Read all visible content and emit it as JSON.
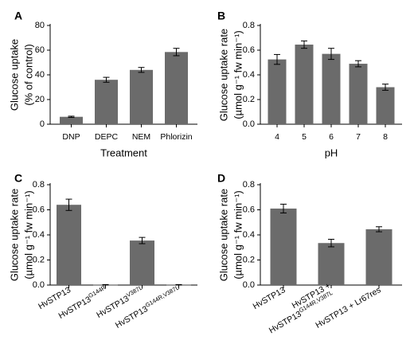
{
  "colors": {
    "bar": "#6b6b6b",
    "axis": "#000000",
    "background": "#ffffff"
  },
  "chart_data": [
    {
      "panel": "A",
      "type": "bar",
      "categories": [
        "DNP",
        "DEPC",
        "NEM",
        "Phlorizin"
      ],
      "values": [
        6,
        36,
        44,
        58.5
      ],
      "errors": [
        0.5,
        2,
        2,
        3
      ],
      "ylabel_lines": [
        "Glucose uptake",
        "(% of control)"
      ],
      "xlabel": "Treatment",
      "ylim": [
        0,
        80
      ],
      "yticks": [
        "0",
        "20",
        "40",
        "60",
        "80"
      ],
      "ytick_values": [
        0,
        20,
        40,
        60,
        80
      ]
    },
    {
      "panel": "B",
      "type": "bar",
      "categories": [
        "4",
        "5",
        "6",
        "7",
        "8"
      ],
      "values": [
        0.525,
        0.645,
        0.57,
        0.49,
        0.3
      ],
      "errors": [
        0.04,
        0.03,
        0.045,
        0.025,
        0.025
      ],
      "ylabel_lines": [
        "Glucose uptake rate",
        "(µmol g⁻¹ fw min⁻¹)"
      ],
      "xlabel": "pH",
      "ylim": [
        0,
        0.8
      ],
      "yticks": [
        "0.0",
        "0.2",
        "0.4",
        "0.6",
        "0.8"
      ],
      "ytick_values": [
        0,
        0.2,
        0.4,
        0.6,
        0.8
      ]
    },
    {
      "panel": "C",
      "type": "bar",
      "categories": [
        "HvSTP13",
        "HvSTP13G144R",
        "HvSTP13V387L",
        "HvSTP13G144R,V387L"
      ],
      "category_parts": [
        [
          "HvSTP13",
          ""
        ],
        [
          "HvSTP13",
          "G144R"
        ],
        [
          "HvSTP13",
          "V387L"
        ],
        [
          "HvSTP13",
          "G144R,V387L"
        ]
      ],
      "values": [
        0.64,
        0.002,
        0.355,
        0.002
      ],
      "errors": [
        0.045,
        0.002,
        0.025,
        0.002
      ],
      "ylabel_lines": [
        "Glucose uptake rate",
        "(µmol g⁻¹ fw min⁻¹)"
      ],
      "xlabel": "",
      "ylim": [
        0,
        0.8
      ],
      "yticks": [
        "0.0",
        "0.2",
        "0.4",
        "0.6",
        "0.8"
      ],
      "ytick_values": [
        0,
        0.2,
        0.4,
        0.6,
        0.8
      ]
    },
    {
      "panel": "D",
      "type": "bar",
      "categories": [
        "HvSTP13",
        "HvSTP13 + HvSTP13G144R,V387L",
        "HvSTP13 + Lr67res"
      ],
      "values": [
        0.61,
        0.335,
        0.445
      ],
      "errors": [
        0.035,
        0.03,
        0.02
      ],
      "ylabel_lines": [
        "Glucose uptake rate",
        "(µmol g⁻¹ fw min⁻¹)"
      ],
      "xlabel": "",
      "ylim": [
        0,
        0.8
      ],
      "yticks": [
        "0.0",
        "0.2",
        "0.4",
        "0.6",
        "0.8"
      ],
      "ytick_values": [
        0,
        0.2,
        0.4,
        0.6,
        0.8
      ]
    }
  ]
}
